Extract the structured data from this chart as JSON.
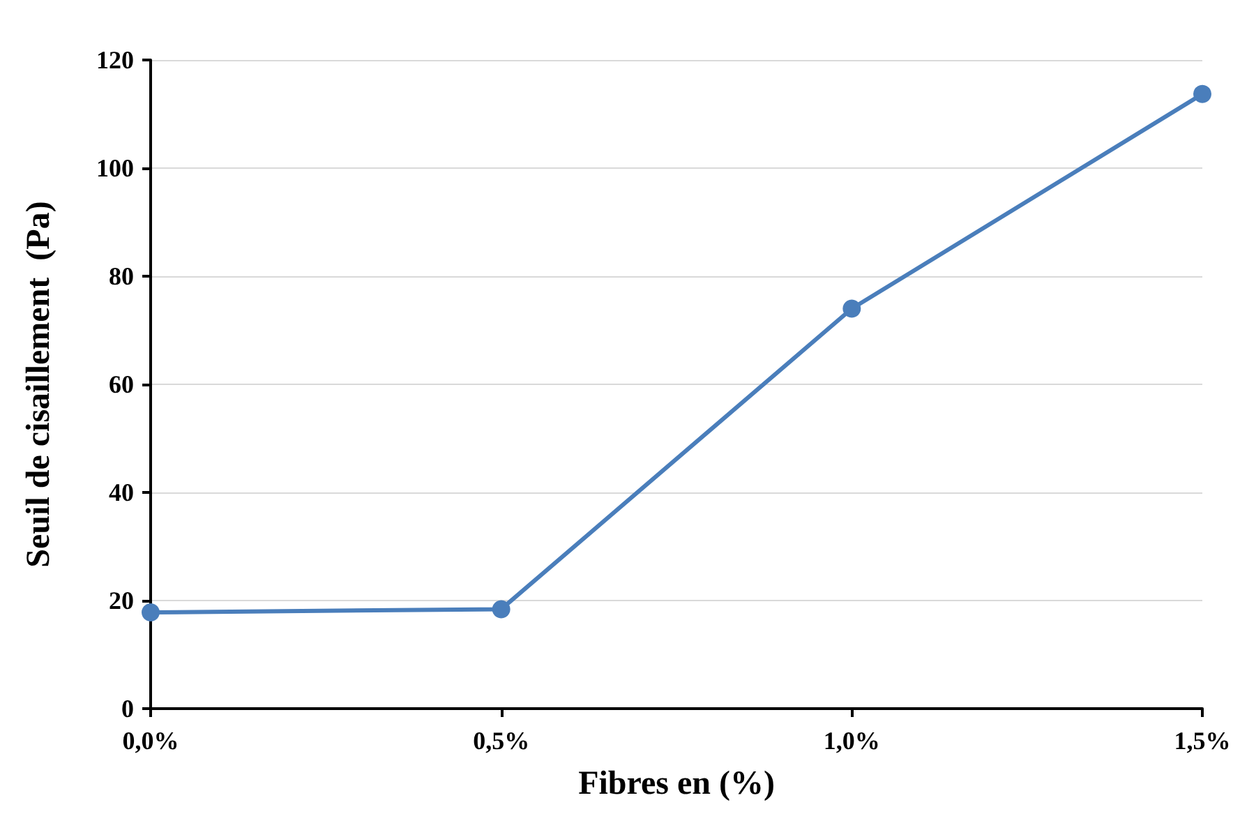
{
  "chart_data": {
    "type": "line",
    "xlabel": "Fibres en (%)",
    "ylabel": "Seuil de cisaillement  (Pa)",
    "categories": [
      "0,0%",
      "0,5%",
      "1,0%",
      "1,5%"
    ],
    "series": [
      {
        "color": "#4a7ebb",
        "values": [
          17.8,
          18.4,
          74,
          113.7
        ]
      }
    ],
    "ylim": [
      0,
      120
    ],
    "yticks": [
      0,
      20,
      40,
      60,
      80,
      100,
      120
    ],
    "grid": "y",
    "marker": "circle",
    "line_style": "solid"
  }
}
